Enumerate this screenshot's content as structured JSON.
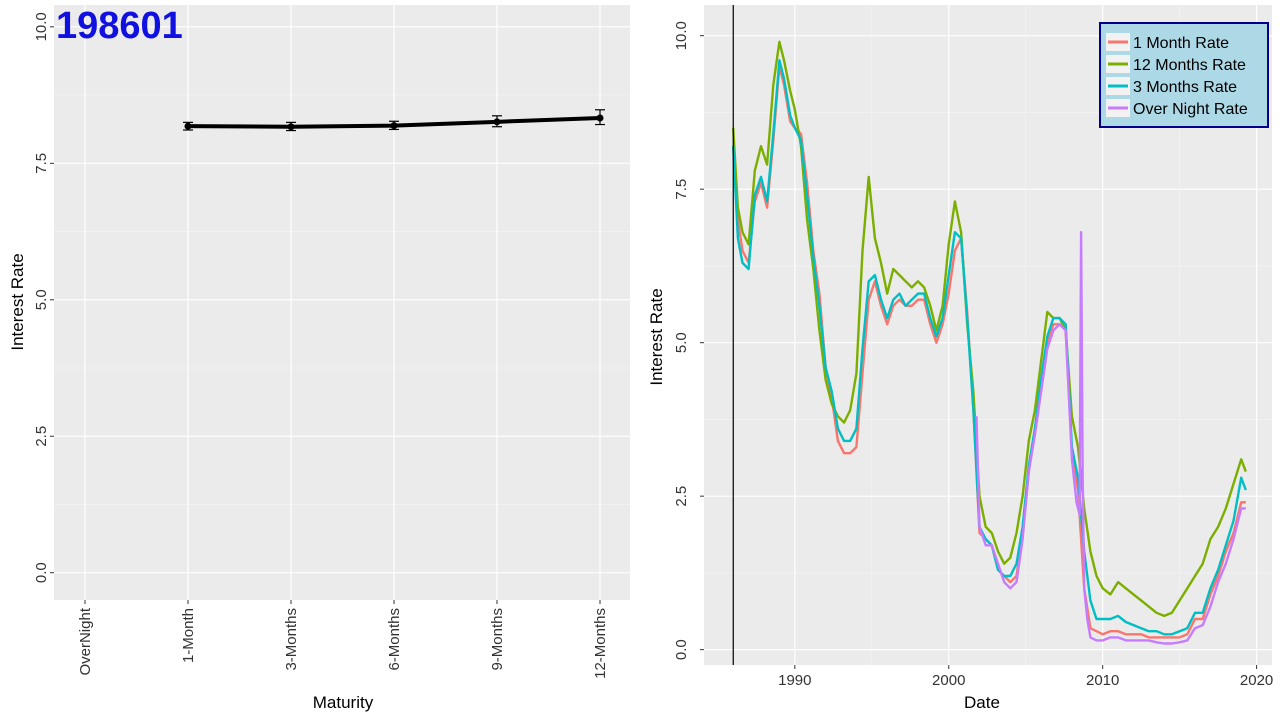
{
  "chart_data": [
    {
      "type": "line",
      "title": "198601",
      "xlabel": "Maturity",
      "ylabel": "Interest Rate",
      "categories": [
        "OverNight",
        "1-Month",
        "3-Months",
        "6-Months",
        "9-Months",
        "12-Months"
      ],
      "values": [
        null,
        8.18,
        8.17,
        8.19,
        8.26,
        8.33
      ],
      "error_low": [
        null,
        8.11,
        8.1,
        8.12,
        8.17,
        8.21
      ],
      "error_high": [
        null,
        8.25,
        8.25,
        8.27,
        8.37,
        8.48
      ],
      "ylim": [
        -0.5,
        10.4
      ],
      "yticks": [
        "0.0",
        "2.5",
        "5.0",
        "7.5",
        "10.0"
      ],
      "line_color": "#000000",
      "grid": true,
      "background": "#ebebeb"
    },
    {
      "type": "line",
      "title": "",
      "xlabel": "Date",
      "ylabel": "Interest Rate",
      "xlim": [
        1984.1,
        2021.0
      ],
      "ylim": [
        -0.25,
        10.5
      ],
      "xticks": [
        "1990",
        "2000",
        "2010",
        "2020"
      ],
      "yticks": [
        "0.0",
        "2.5",
        "5.0",
        "7.5",
        "10.0"
      ],
      "current_date": 1986.0,
      "grid": true,
      "background": "#ebebeb",
      "legend_position": "top-right",
      "series": [
        {
          "name": "1 Month Rate",
          "color": "#f8766d",
          "x": [
            1986.0,
            1986.3,
            1986.6,
            1987.0,
            1987.4,
            1987.8,
            1988.2,
            1988.6,
            1989.0,
            1989.3,
            1989.7,
            1990.0,
            1990.4,
            1990.8,
            1991.2,
            1991.6,
            1992.0,
            1992.4,
            1992.8,
            1993.2,
            1993.6,
            1994.0,
            1994.4,
            1994.8,
            1995.2,
            1995.6,
            1996.0,
            1996.4,
            1996.8,
            1997.2,
            1997.6,
            1998.0,
            1998.4,
            1998.8,
            1999.2,
            1999.6,
            2000.0,
            2000.4,
            2000.8,
            2001.2,
            2001.6,
            2002.0,
            2002.4,
            2002.8,
            2003.2,
            2003.6,
            2004.0,
            2004.4,
            2004.8,
            2005.2,
            2005.6,
            2006.0,
            2006.4,
            2006.8,
            2007.2,
            2007.6,
            2008.0,
            2008.4,
            2008.8,
            2009.2,
            2009.6,
            2010.0,
            2010.5,
            2011.0,
            2011.5,
            2012.0,
            2012.5,
            2013.0,
            2013.5,
            2014.0,
            2014.5,
            2015.0,
            2015.5,
            2016.0,
            2016.5,
            2017.0,
            2017.5,
            2018.0,
            2018.5,
            2019.0,
            2019.3
          ],
          "y": [
            8.2,
            7.0,
            6.5,
            6.3,
            7.3,
            7.6,
            7.2,
            8.3,
            9.5,
            9.2,
            8.6,
            8.5,
            8.4,
            7.6,
            6.5,
            5.8,
            4.6,
            4.1,
            3.4,
            3.2,
            3.2,
            3.3,
            4.5,
            5.7,
            6.0,
            5.6,
            5.3,
            5.6,
            5.7,
            5.6,
            5.6,
            5.7,
            5.7,
            5.3,
            5.0,
            5.3,
            5.8,
            6.5,
            6.7,
            5.5,
            3.9,
            1.9,
            1.8,
            1.7,
            1.3,
            1.2,
            1.1,
            1.2,
            1.9,
            2.9,
            3.6,
            4.3,
            5.0,
            5.3,
            5.3,
            5.2,
            3.2,
            2.6,
            1.0,
            0.35,
            0.3,
            0.25,
            0.3,
            0.3,
            0.25,
            0.25,
            0.25,
            0.2,
            0.2,
            0.2,
            0.2,
            0.2,
            0.25,
            0.5,
            0.5,
            0.9,
            1.2,
            1.6,
            1.9,
            2.4,
            2.4
          ]
        },
        {
          "name": "12 Months Rate",
          "color": "#7cae00",
          "x": [
            1986.0,
            1986.3,
            1986.6,
            1987.0,
            1987.4,
            1987.8,
            1988.2,
            1988.6,
            1989.0,
            1989.3,
            1989.7,
            1990.0,
            1990.4,
            1990.8,
            1991.2,
            1991.6,
            1992.0,
            1992.4,
            1992.8,
            1993.2,
            1993.6,
            1994.0,
            1994.4,
            1994.8,
            1995.2,
            1995.6,
            1996.0,
            1996.4,
            1996.8,
            1997.2,
            1997.6,
            1998.0,
            1998.4,
            1998.8,
            1999.2,
            1999.6,
            2000.0,
            2000.4,
            2000.8,
            2001.2,
            2001.6,
            2002.0,
            2002.4,
            2002.8,
            2003.2,
            2003.6,
            2004.0,
            2004.4,
            2004.8,
            2005.2,
            2005.6,
            2006.0,
            2006.4,
            2006.8,
            2007.2,
            2007.6,
            2008.0,
            2008.4,
            2008.8,
            2009.2,
            2009.6,
            2010.0,
            2010.5,
            2011.0,
            2011.5,
            2012.0,
            2012.5,
            2013.0,
            2013.5,
            2014.0,
            2014.5,
            2015.0,
            2015.5,
            2016.0,
            2016.5,
            2017.0,
            2017.5,
            2018.0,
            2018.5,
            2019.0,
            2019.3
          ],
          "y": [
            8.5,
            7.2,
            6.8,
            6.6,
            7.8,
            8.2,
            7.9,
            9.2,
            9.9,
            9.6,
            9.1,
            8.8,
            8.2,
            7.0,
            6.2,
            5.2,
            4.4,
            4.0,
            3.8,
            3.7,
            3.9,
            4.5,
            6.5,
            7.7,
            6.7,
            6.3,
            5.8,
            6.2,
            6.1,
            6.0,
            5.9,
            6.0,
            5.9,
            5.6,
            5.2,
            5.6,
            6.6,
            7.3,
            6.8,
            5.3,
            4.2,
            2.5,
            2.0,
            1.9,
            1.6,
            1.4,
            1.5,
            1.9,
            2.5,
            3.4,
            3.9,
            4.7,
            5.5,
            5.4,
            5.4,
            5.2,
            3.8,
            3.3,
            2.3,
            1.6,
            1.2,
            1.0,
            0.9,
            1.1,
            1.0,
            0.9,
            0.8,
            0.7,
            0.6,
            0.55,
            0.6,
            0.8,
            1.0,
            1.2,
            1.4,
            1.8,
            2.0,
            2.3,
            2.7,
            3.1,
            2.9
          ]
        },
        {
          "name": "3 Months Rate",
          "color": "#00bfc4",
          "x": [
            1986.0,
            1986.3,
            1986.6,
            1987.0,
            1987.4,
            1987.8,
            1988.2,
            1988.6,
            1989.0,
            1989.3,
            1989.7,
            1990.0,
            1990.4,
            1990.8,
            1991.2,
            1991.6,
            1992.0,
            1992.4,
            1992.8,
            1993.2,
            1993.6,
            1994.0,
            1994.4,
            1994.8,
            1995.2,
            1995.6,
            1996.0,
            1996.4,
            1996.8,
            1997.2,
            1997.6,
            1998.0,
            1998.4,
            1998.8,
            1999.2,
            1999.6,
            2000.0,
            2000.4,
            2000.8,
            2001.2,
            2001.6,
            2002.0,
            2002.4,
            2002.8,
            2003.2,
            2003.6,
            2004.0,
            2004.4,
            2004.8,
            2005.2,
            2005.6,
            2006.0,
            2006.4,
            2006.8,
            2007.2,
            2007.6,
            2008.0,
            2008.4,
            2008.8,
            2009.2,
            2009.6,
            2010.0,
            2010.5,
            2011.0,
            2011.5,
            2012.0,
            2012.5,
            2013.0,
            2013.5,
            2014.0,
            2014.5,
            2015.0,
            2015.5,
            2016.0,
            2016.5,
            2017.0,
            2017.5,
            2018.0,
            2018.5,
            2019.0,
            2019.3
          ],
          "y": [
            8.2,
            6.7,
            6.3,
            6.2,
            7.4,
            7.7,
            7.3,
            8.4,
            9.6,
            9.3,
            8.7,
            8.5,
            8.3,
            7.4,
            6.4,
            5.6,
            4.6,
            4.2,
            3.6,
            3.4,
            3.4,
            3.6,
            4.9,
            6.0,
            6.1,
            5.7,
            5.4,
            5.7,
            5.8,
            5.6,
            5.7,
            5.8,
            5.8,
            5.4,
            5.1,
            5.4,
            6.1,
            6.8,
            6.7,
            5.4,
            3.9,
            2.0,
            1.8,
            1.7,
            1.3,
            1.2,
            1.2,
            1.4,
            2.0,
            3.0,
            3.6,
            4.4,
            5.1,
            5.4,
            5.4,
            5.3,
            3.3,
            2.8,
            1.6,
            0.8,
            0.5,
            0.5,
            0.5,
            0.55,
            0.45,
            0.4,
            0.35,
            0.3,
            0.3,
            0.25,
            0.25,
            0.3,
            0.35,
            0.6,
            0.6,
            1.0,
            1.3,
            1.7,
            2.1,
            2.8,
            2.6
          ]
        },
        {
          "name": "Over Night Rate",
          "color": "#c77cff",
          "x": [
            2001.8,
            2002.0,
            2002.4,
            2002.8,
            2003.2,
            2003.6,
            2004.0,
            2004.4,
            2004.8,
            2005.2,
            2005.6,
            2006.0,
            2006.4,
            2006.8,
            2007.2,
            2007.6,
            2008.0,
            2008.3,
            2008.5,
            2008.6,
            2008.7,
            2008.8,
            2009.0,
            2009.2,
            2009.6,
            2010.0,
            2010.5,
            2011.0,
            2011.5,
            2012.0,
            2012.5,
            2013.0,
            2013.5,
            2014.0,
            2014.5,
            2015.0,
            2015.5,
            2016.0,
            2016.5,
            2017.0,
            2017.5,
            2018.0,
            2018.5,
            2019.0,
            2019.3
          ],
          "y": [
            3.8,
            2.0,
            1.7,
            1.7,
            1.4,
            1.1,
            1.0,
            1.1,
            1.8,
            2.9,
            3.5,
            4.2,
            4.9,
            5.2,
            5.3,
            5.2,
            3.1,
            2.4,
            2.2,
            6.8,
            2.8,
            1.0,
            0.5,
            0.2,
            0.15,
            0.15,
            0.2,
            0.2,
            0.15,
            0.15,
            0.15,
            0.15,
            0.12,
            0.1,
            0.1,
            0.12,
            0.15,
            0.35,
            0.4,
            0.7,
            1.1,
            1.4,
            1.8,
            2.3,
            2.3
          ]
        }
      ]
    }
  ]
}
